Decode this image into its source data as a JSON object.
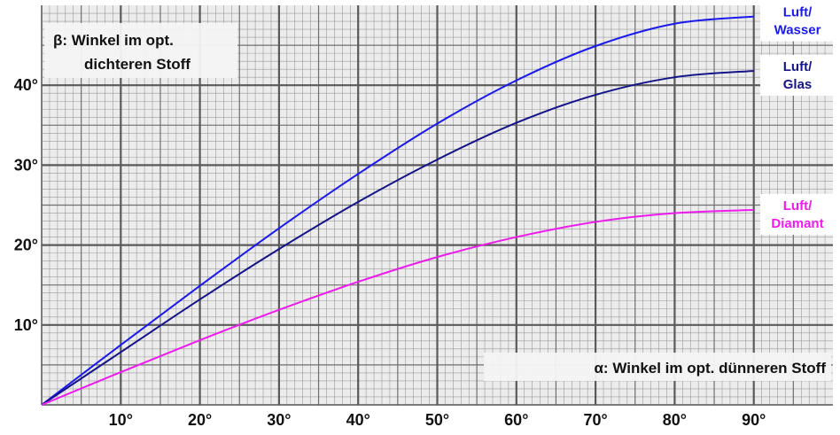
{
  "chart_data": {
    "type": "line",
    "ylabel_lines": [
      "β: Winkel im opt.",
      "dichteren Stoff"
    ],
    "xlabel": "α: Winkel im opt. dünneren Stoff",
    "xlim": [
      0,
      100
    ],
    "ylim": [
      0,
      50
    ],
    "x_ticks": [
      10,
      20,
      30,
      40,
      50,
      60,
      70,
      80,
      90
    ],
    "x_tick_labels": [
      "10°",
      "20°",
      "30°",
      "40°",
      "50°",
      "60°",
      "70°",
      "80°",
      "90°"
    ],
    "y_ticks": [
      10,
      20,
      30,
      40
    ],
    "y_tick_labels": [
      "10°",
      "20°",
      "30°",
      "40°"
    ],
    "grid": true,
    "series": [
      {
        "name_lines": [
          "Luft/",
          "Wasser"
        ],
        "color": "#1a1aee",
        "x": [
          0,
          10,
          20,
          30,
          40,
          50,
          60,
          70,
          80,
          90
        ],
        "y": [
          0,
          7.5,
          14.9,
          22.1,
          28.9,
          35.2,
          40.6,
          44.9,
          47.7,
          48.6
        ]
      },
      {
        "name_lines": [
          "Luft/",
          "Glas"
        ],
        "color": "#14148a",
        "x": [
          0,
          10,
          20,
          30,
          40,
          50,
          60,
          70,
          80,
          90
        ],
        "y": [
          0,
          6.6,
          13.2,
          19.5,
          25.4,
          30.7,
          35.3,
          38.8,
          41.0,
          41.8
        ]
      },
      {
        "name_lines": [
          "Luft/",
          "Diamant"
        ],
        "color": "#ee1aee",
        "x": [
          0,
          10,
          20,
          30,
          40,
          50,
          60,
          70,
          80,
          90
        ],
        "y": [
          0,
          4.1,
          8.1,
          11.9,
          15.4,
          18.5,
          21.0,
          22.9,
          24.0,
          24.4
        ]
      }
    ]
  }
}
